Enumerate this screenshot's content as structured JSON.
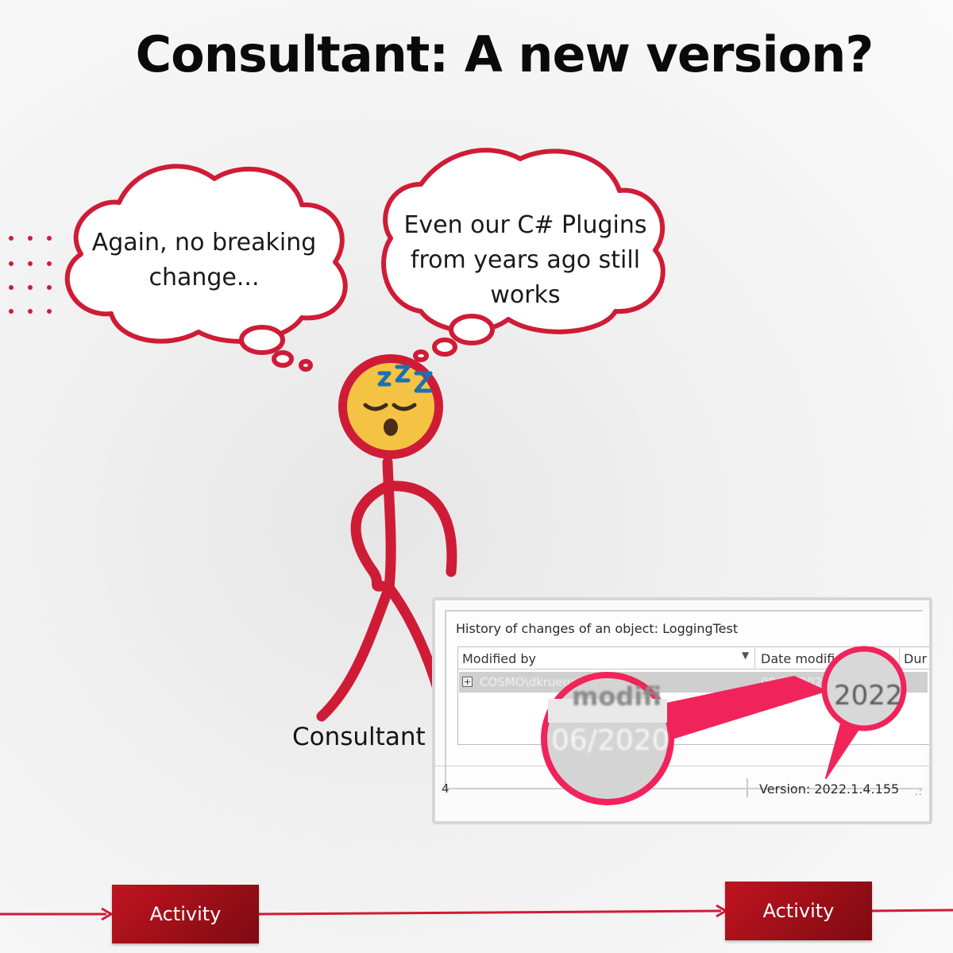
{
  "title": "Consultant: A new version?",
  "bubbles": {
    "left_lines": [
      "Again, no breaking",
      "change..."
    ],
    "right_lines": [
      "Even our C# Plugins",
      "from years ago still",
      "works"
    ]
  },
  "character": {
    "label": "Consultant",
    "emoji": "sleeping-face",
    "zzz": "ZZZ"
  },
  "screenshot": {
    "history_title": "History of changes of an object: LoggingTest",
    "columns": [
      "Modified by",
      "Date modified",
      "Dur"
    ],
    "row": {
      "user": "COSMO\\dkrueger2019",
      "date": "09/06/2020"
    },
    "magnifier_left": {
      "line1": "modifi",
      "line2": "06/2020"
    },
    "magnifier_right": "2022",
    "status_left": "4",
    "version": "Version: 2022.1.4.155"
  },
  "timeline": {
    "activities": [
      "Activity",
      "Activity"
    ]
  },
  "colors": {
    "brand_red": "#cf1c36",
    "magnifier_pink": "#f0245a",
    "emoji_yellow": "#f5c343"
  }
}
